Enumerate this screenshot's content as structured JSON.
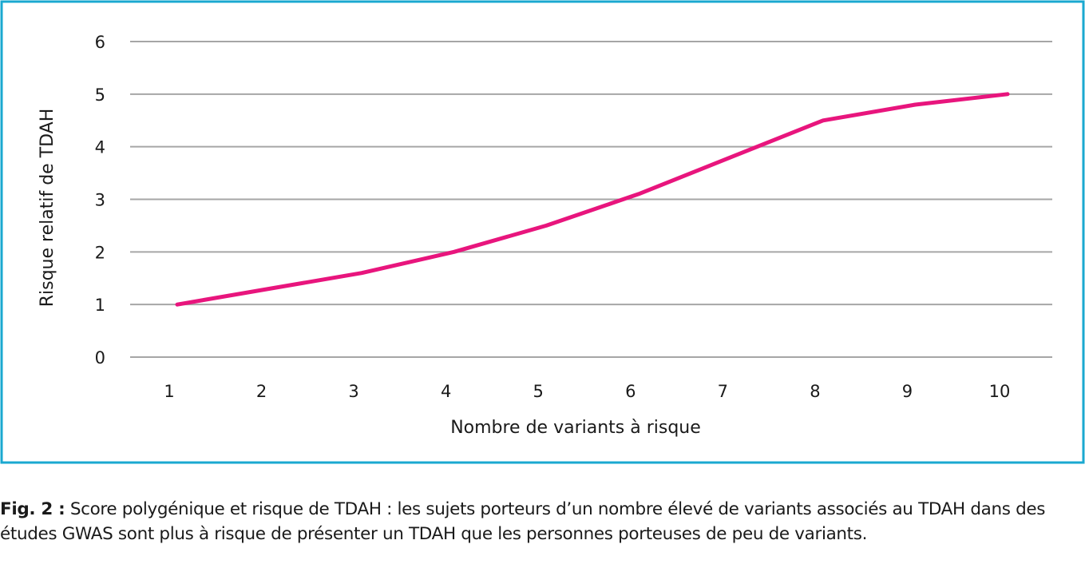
{
  "colors": {
    "frame": "#1aa8d0",
    "series": "#e8157d",
    "grid": "#a6a6a6",
    "text": "#1a1a1a"
  },
  "chart_data": {
    "type": "line",
    "x": [
      1,
      2,
      3,
      4,
      5,
      6,
      7,
      8,
      9,
      10
    ],
    "series": [
      {
        "values": [
          1.0,
          1.3,
          1.6,
          2.0,
          2.5,
          3.1,
          3.8,
          4.5,
          4.8,
          5.0
        ]
      }
    ],
    "xlabel": "Nombre de variants à risque",
    "ylabel": "Risque relatif de TDAH",
    "ylim": [
      0,
      6
    ],
    "yticks": [
      "0",
      "1",
      "2",
      "3",
      "4",
      "5",
      "6"
    ],
    "xticks": [
      "1",
      "2",
      "3",
      "4",
      "5",
      "6",
      "7",
      "8",
      "9",
      "10"
    ],
    "grid": true,
    "legend": "none"
  },
  "caption": {
    "label": "Fig. 2 :",
    "text": " Score polygénique et risque de TDAH : les sujets porteurs d’un nombre élevé de variants associés au TDAH dans des études GWAS sont plus à risque de présenter un TDAH que les personnes porteuses de peu de variants."
  }
}
